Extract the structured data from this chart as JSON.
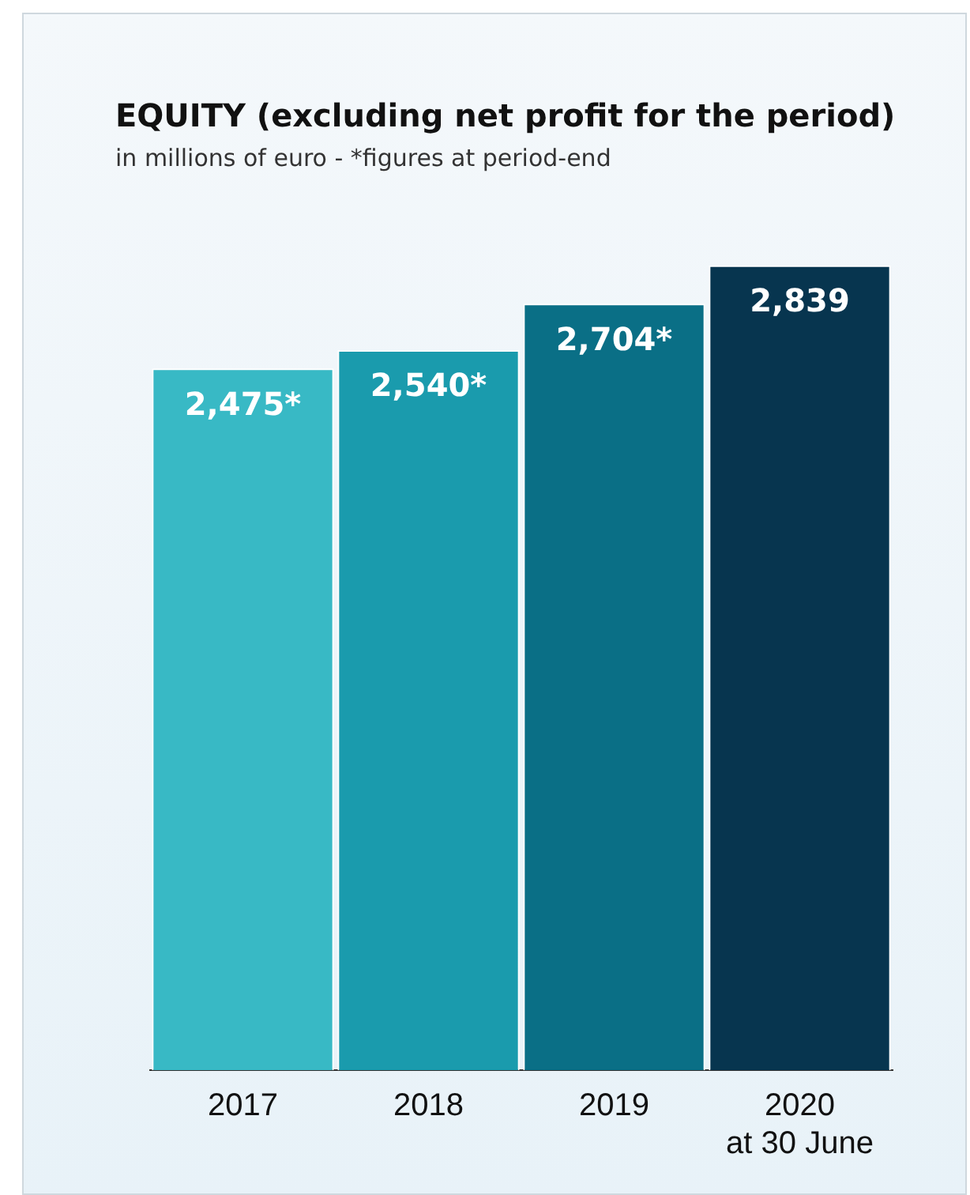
{
  "chart_data": {
    "type": "bar",
    "title": "EQUITY (excluding net profit for the period)",
    "subtitle": "in millions of euro - *figures at period-end",
    "categories": [
      "2017",
      "2018",
      "2019",
      "2020\nat 30 June"
    ],
    "values": [
      2475,
      2540,
      2704,
      2839
    ],
    "value_labels": [
      "2,475*",
      "2,540*",
      "2,704*",
      "2,839"
    ],
    "colors": [
      "#38b9c5",
      "#1a9bad",
      "#0a6f86",
      "#07354f"
    ],
    "grid": false,
    "legend": false
  }
}
